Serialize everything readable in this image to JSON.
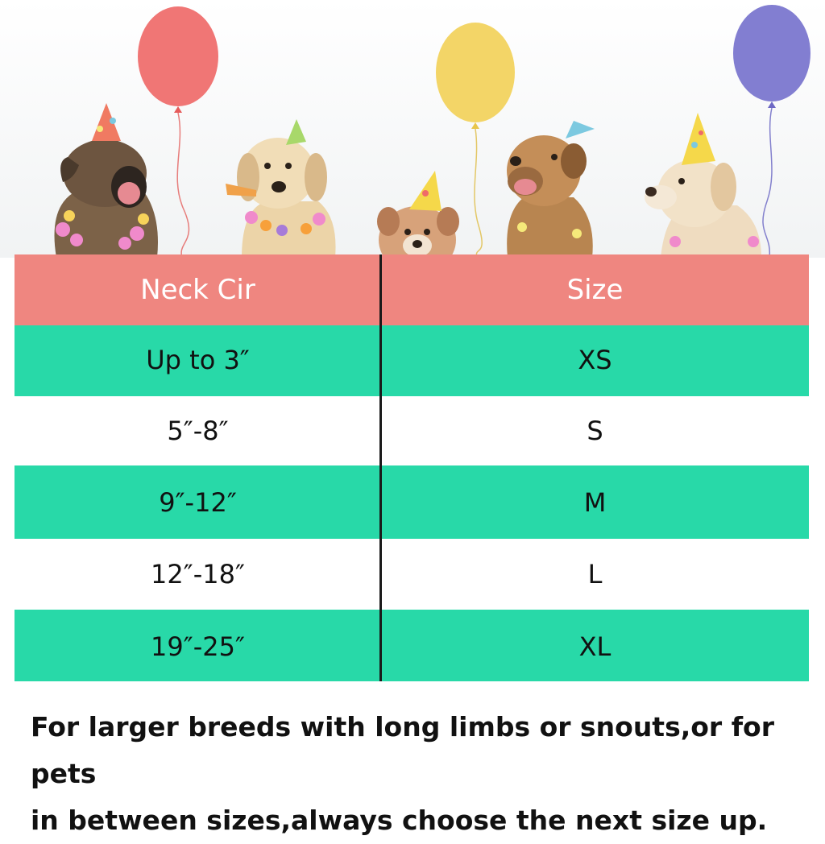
{
  "table": {
    "headers": [
      "Neck Cir",
      "Size"
    ],
    "rows": [
      {
        "neck": "Up to 3″",
        "size": "XS"
      },
      {
        "neck": "5″-8″",
        "size": "S"
      },
      {
        "neck": "9″-12″",
        "size": "M"
      },
      {
        "neck": "12″-18″",
        "size": "L"
      },
      {
        "neck": "19″-25″",
        "size": "XL"
      }
    ]
  },
  "note": {
    "line1": "For larger breeds with long limbs or snouts,or for pets",
    "line2": "in between sizes,always choose the next  size up."
  },
  "colors": {
    "header_bg": "#ef8680",
    "row_green": "#28d9a8",
    "divider": "#1a1a1a"
  },
  "illustration": {
    "subjects": [
      "party-dog",
      "party-dog",
      "party-dog",
      "party-dog",
      "party-dog"
    ],
    "balloons": [
      "red-balloon",
      "yellow-balloon",
      "purple-balloon"
    ]
  }
}
